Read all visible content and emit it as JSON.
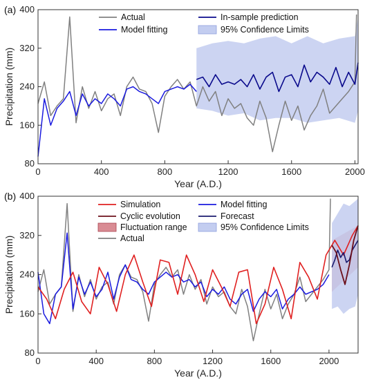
{
  "colors": {
    "actual": "#808080",
    "model_fitting": "#1a1adf",
    "in_sample_prediction": "#0a0a8c",
    "ci_fill": "#c3cdf0",
    "simulation": "#e02020",
    "cyclic_evolution": "#6b0f1a",
    "forecast": "#1a1a6e",
    "fluctuation_fill": "#d98c94"
  },
  "chart_data": [
    {
      "panel_label": "(a)",
      "type": "line",
      "xlabel": "Year (A.D.)",
      "ylabel": "Precipitation (mm)",
      "xlim": [
        0,
        2020
      ],
      "ylim": [
        80,
        400
      ],
      "xticks": [
        "0",
        "400",
        "800",
        "1200",
        "1600",
        "2000"
      ],
      "yticks": [
        "80",
        "160",
        "240",
        "320",
        "400"
      ],
      "legend": {
        "position": "top",
        "entries": [
          "Actual",
          "In-sample prediction",
          "Model fitting",
          "95% Confidence Limits"
        ]
      },
      "series": [
        {
          "name": "Actual",
          "x": [
            0,
            40,
            80,
            120,
            160,
            200,
            240,
            280,
            320,
            360,
            400,
            440,
            480,
            520,
            560,
            600,
            640,
            680,
            720,
            760,
            800,
            840,
            880,
            920,
            960,
            1000,
            1040,
            1080,
            1120,
            1160,
            1200,
            1240,
            1280,
            1320,
            1360,
            1400,
            1440,
            1480,
            1520,
            1560,
            1600,
            1640,
            1680,
            1720,
            1760,
            1800,
            1840,
            1880,
            1920,
            1960,
            2000,
            2010
          ],
          "values": [
            205,
            250,
            180,
            200,
            215,
            385,
            165,
            240,
            195,
            230,
            190,
            215,
            225,
            180,
            240,
            260,
            235,
            230,
            205,
            145,
            220,
            240,
            255,
            235,
            250,
            200,
            240,
            210,
            230,
            180,
            215,
            195,
            205,
            175,
            160,
            210,
            175,
            105,
            160,
            210,
            170,
            200,
            150,
            180,
            200,
            235,
            185,
            200,
            215,
            230,
            250,
            390
          ]
        },
        {
          "name": "Model fitting",
          "x": [
            0,
            40,
            80,
            120,
            160,
            200,
            240,
            280,
            320,
            360,
            400,
            440,
            480,
            520,
            560,
            600,
            640,
            680,
            720,
            760,
            800,
            840,
            880,
            920,
            960,
            1000
          ],
          "values": [
            95,
            215,
            160,
            195,
            210,
            230,
            180,
            225,
            200,
            215,
            205,
            225,
            215,
            200,
            235,
            240,
            230,
            225,
            215,
            205,
            230,
            235,
            240,
            235,
            245,
            230
          ]
        },
        {
          "name": "In-sample prediction",
          "x": [
            1000,
            1040,
            1080,
            1120,
            1160,
            1200,
            1240,
            1280,
            1320,
            1360,
            1400,
            1440,
            1480,
            1520,
            1560,
            1600,
            1640,
            1680,
            1720,
            1760,
            1800,
            1840,
            1880,
            1920,
            1960,
            2000,
            2020
          ],
          "values": [
            255,
            260,
            240,
            265,
            245,
            250,
            245,
            255,
            240,
            265,
            235,
            260,
            270,
            230,
            260,
            265,
            240,
            285,
            250,
            270,
            260,
            245,
            280,
            240,
            270,
            245,
            290
          ]
        },
        {
          "name": "95% Confidence Limits",
          "x": [
            1000,
            1100,
            1200,
            1300,
            1400,
            1500,
            1600,
            1700,
            1800,
            1900,
            2000,
            2020
          ],
          "lower": [
            195,
            190,
            180,
            185,
            170,
            175,
            175,
            165,
            170,
            175,
            165,
            190
          ],
          "upper": [
            320,
            330,
            335,
            330,
            340,
            345,
            330,
            345,
            330,
            340,
            345,
            385
          ]
        }
      ]
    },
    {
      "panel_label": "(b)",
      "type": "line",
      "xlabel": "Year (A.D.)",
      "ylabel": "Precipitation (mm)",
      "xlim": [
        0,
        2200
      ],
      "ylim": [
        80,
        400
      ],
      "xticks": [
        "0",
        "400",
        "800",
        "1200",
        "1600",
        "2000"
      ],
      "yticks": [
        "80",
        "160",
        "240",
        "320",
        "400"
      ],
      "legend": {
        "position": "top",
        "entries": [
          "Simulation",
          "Model fitting",
          "Cyclic evolution",
          "Forecast",
          "Fluctuation range",
          "95% Confidence Limits",
          "Actual"
        ]
      },
      "series": [
        {
          "name": "Actual",
          "x": [
            0,
            40,
            80,
            120,
            160,
            200,
            240,
            280,
            320,
            360,
            400,
            440,
            480,
            520,
            560,
            600,
            640,
            680,
            720,
            760,
            800,
            840,
            880,
            920,
            960,
            1000,
            1040,
            1080,
            1120,
            1160,
            1200,
            1240,
            1280,
            1320,
            1360,
            1400,
            1440,
            1480,
            1520,
            1560,
            1600,
            1640,
            1680,
            1720,
            1760,
            1800,
            1840,
            1880,
            1920,
            1960,
            2000,
            2010
          ],
          "values": [
            205,
            250,
            180,
            200,
            215,
            385,
            165,
            240,
            195,
            230,
            190,
            215,
            225,
            180,
            240,
            260,
            235,
            230,
            205,
            145,
            220,
            240,
            255,
            235,
            250,
            200,
            240,
            210,
            230,
            180,
            215,
            195,
            205,
            175,
            160,
            210,
            175,
            105,
            160,
            210,
            170,
            200,
            150,
            180,
            200,
            235,
            185,
            200,
            215,
            230,
            250,
            395
          ]
        },
        {
          "name": "Model fitting",
          "x": [
            0,
            40,
            80,
            120,
            160,
            200,
            240,
            280,
            320,
            360,
            400,
            440,
            480,
            520,
            560,
            600,
            640,
            680,
            720,
            760,
            800,
            840,
            880,
            920,
            960,
            1000,
            1040,
            1080,
            1120,
            1160,
            1200,
            1240,
            1280,
            1320,
            1360,
            1400,
            1440,
            1480,
            1520,
            1560,
            1600,
            1640,
            1680,
            1720,
            1760,
            1800,
            1840,
            1880,
            1920,
            1960,
            2000
          ],
          "values": [
            245,
            160,
            140,
            200,
            215,
            325,
            170,
            235,
            200,
            225,
            195,
            210,
            245,
            190,
            235,
            260,
            230,
            225,
            210,
            200,
            225,
            235,
            245,
            235,
            240,
            225,
            230,
            215,
            225,
            195,
            210,
            200,
            215,
            190,
            180,
            200,
            210,
            165,
            190,
            205,
            195,
            210,
            170,
            190,
            200,
            215,
            200,
            205,
            210,
            220,
            240
          ]
        },
        {
          "name": "Simulation",
          "x": [
            0,
            60,
            120,
            180,
            240,
            300,
            360,
            420,
            480,
            540,
            600,
            660,
            720,
            780,
            840,
            900,
            960,
            1020,
            1080,
            1140,
            1200,
            1260,
            1320,
            1380,
            1440,
            1500,
            1560,
            1620,
            1680,
            1740,
            1800,
            1860,
            1920,
            1980,
            2040,
            2100,
            2160,
            2200
          ],
          "values": [
            215,
            190,
            150,
            210,
            245,
            185,
            160,
            255,
            220,
            165,
            240,
            280,
            225,
            175,
            270,
            265,
            200,
            280,
            240,
            185,
            250,
            215,
            175,
            245,
            250,
            140,
            180,
            255,
            210,
            150,
            265,
            235,
            190,
            280,
            310,
            280,
            320,
            340
          ]
        },
        {
          "name": "Cyclic evolution",
          "x": [
            2020,
            2050,
            2080,
            2110,
            2140,
            2170,
            2200
          ],
          "values": [
            300,
            285,
            250,
            220,
            260,
            310,
            340
          ]
        },
        {
          "name": "Forecast",
          "x": [
            2020,
            2040,
            2060,
            2080,
            2100,
            2120,
            2140,
            2160,
            2180,
            2200
          ],
          "values": [
            255,
            270,
            290,
            275,
            285,
            265,
            270,
            290,
            300,
            310
          ]
        },
        {
          "name": "Fluctuation range",
          "x": [
            2020,
            2200
          ],
          "lower": [
            205,
            255
          ],
          "upper": [
            310,
            340
          ]
        },
        {
          "name": "95% Confidence Limits",
          "x": [
            2020,
            2060,
            2100,
            2140,
            2180,
            2200
          ],
          "lower": [
            170,
            175,
            160,
            170,
            175,
            200
          ],
          "upper": [
            345,
            365,
            385,
            380,
            390,
            395
          ]
        }
      ]
    }
  ]
}
